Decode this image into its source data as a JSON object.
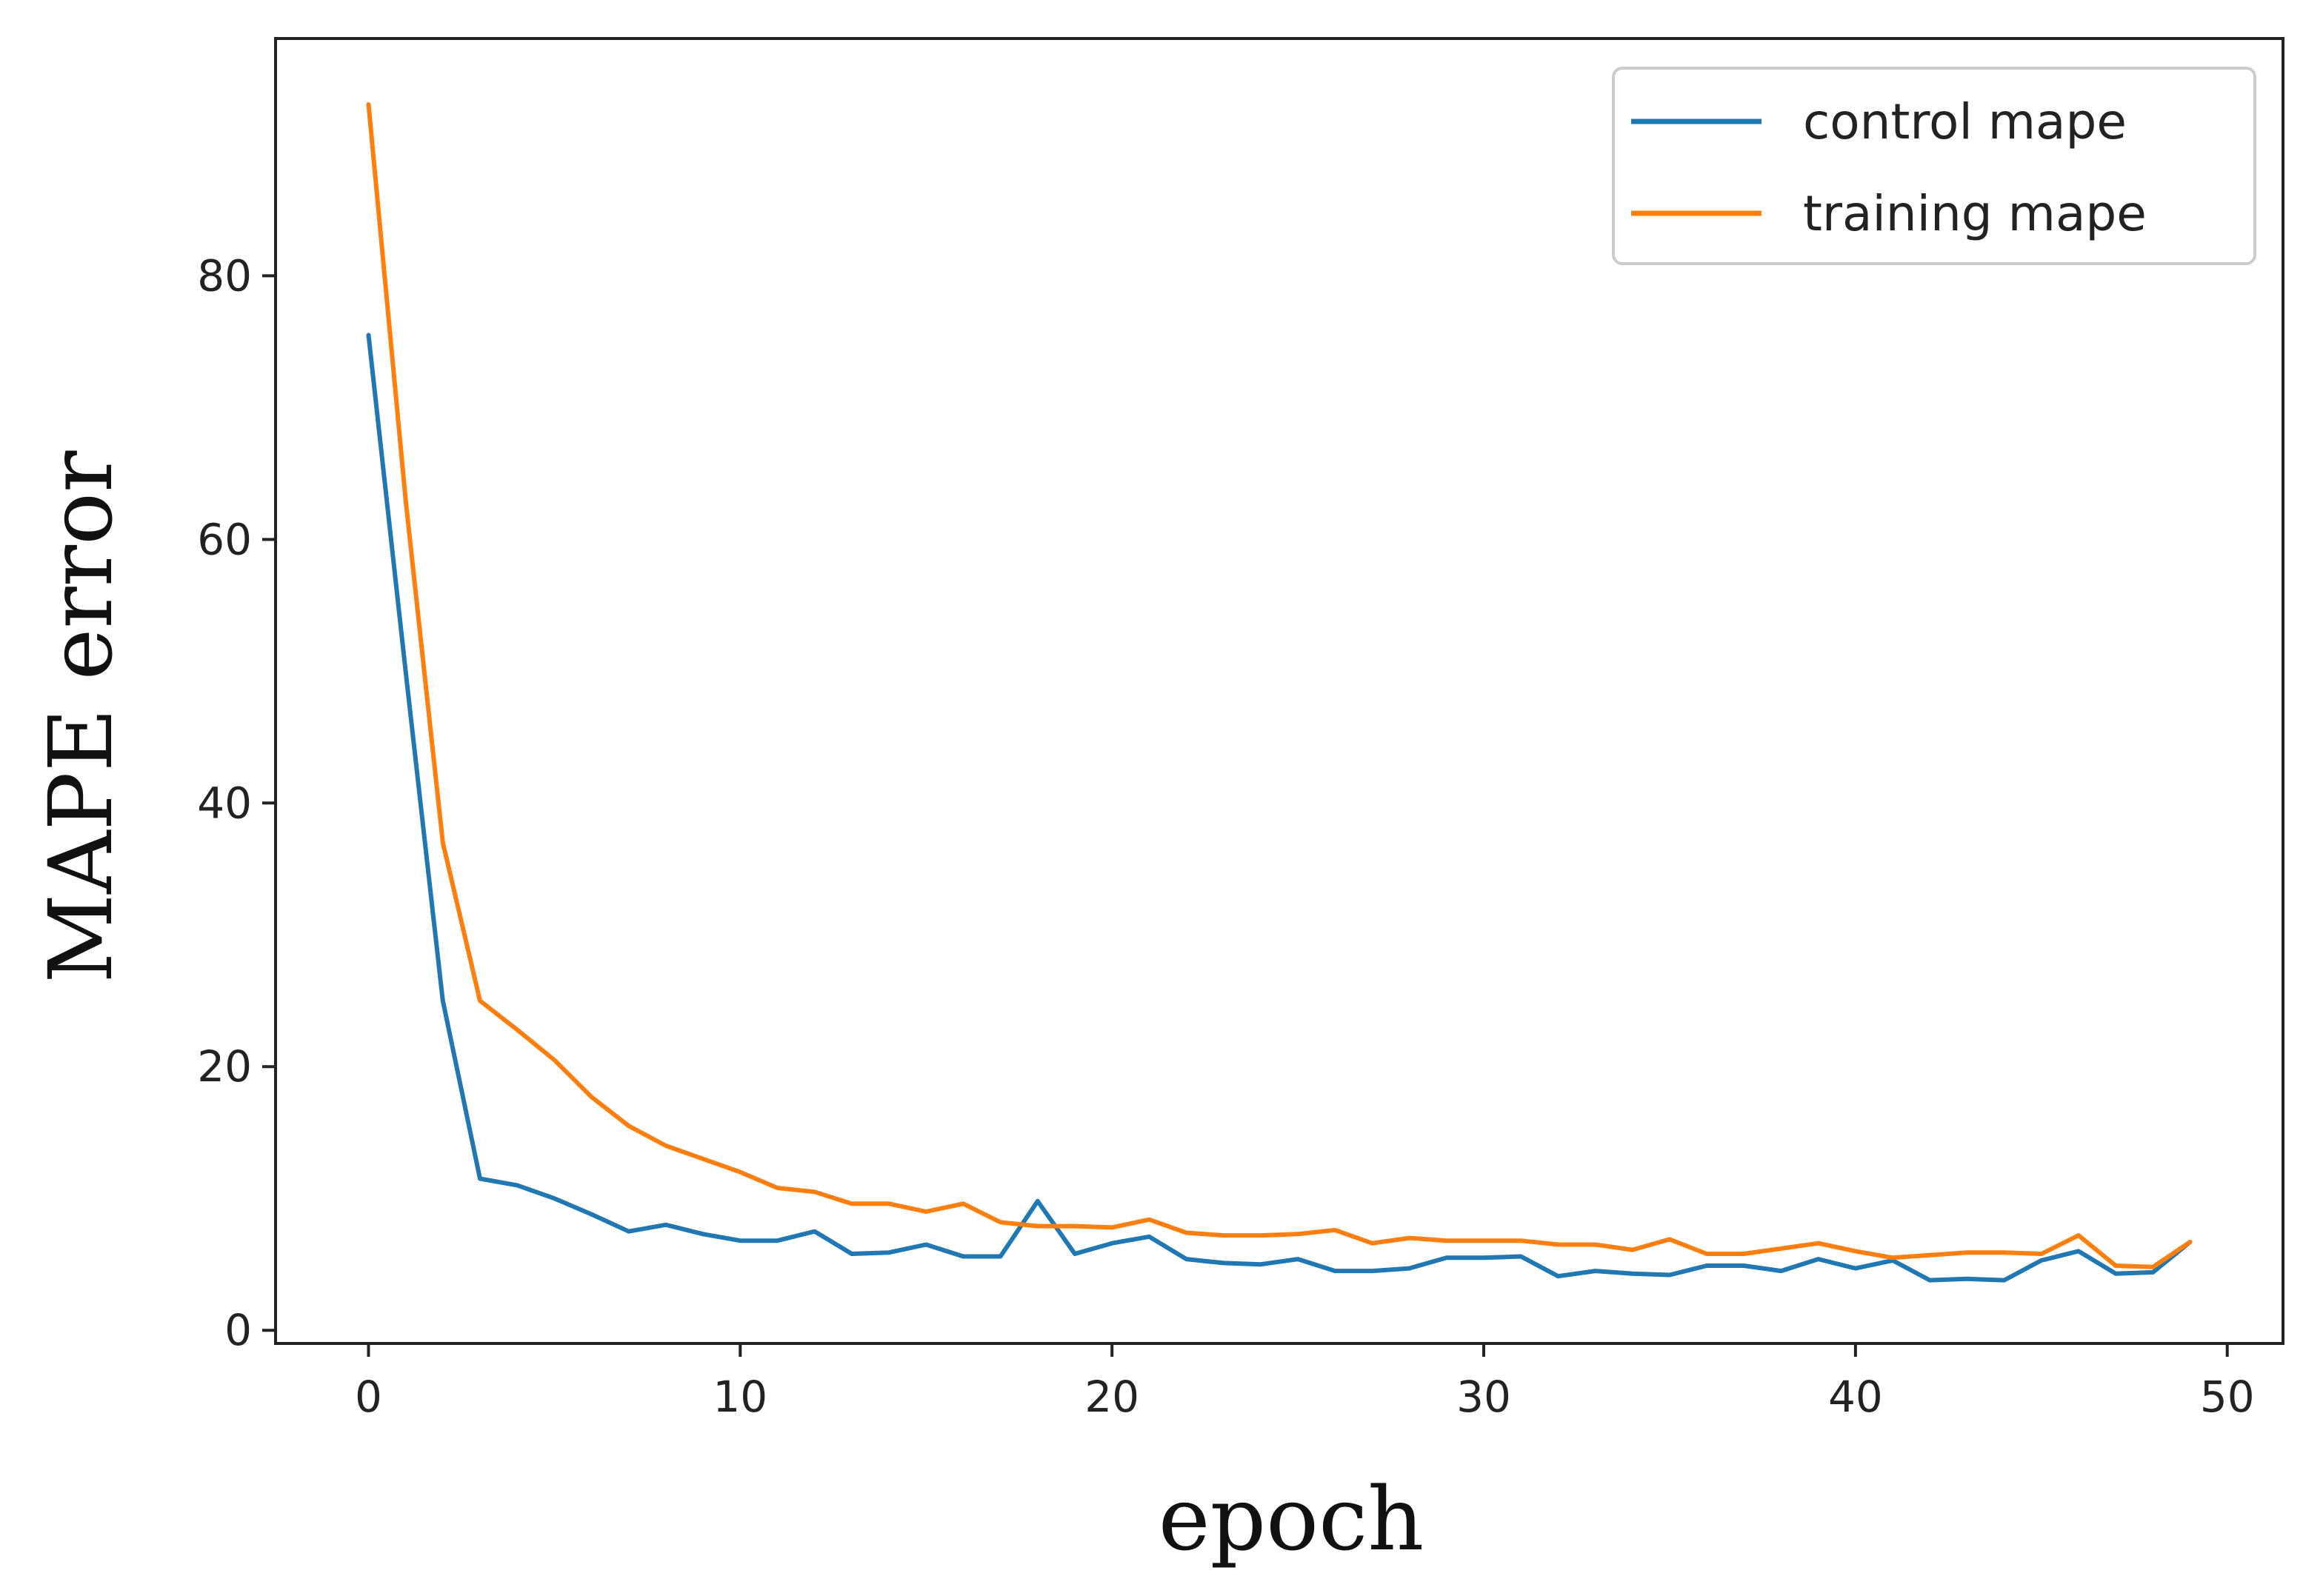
{
  "chart_data": {
    "type": "line",
    "title": "",
    "xlabel": "epoch",
    "ylabel": "MAPE error",
    "xlim": [
      -2.5,
      51.5
    ],
    "ylim": [
      -1,
      98
    ],
    "xticks": [
      0,
      10,
      20,
      30,
      40,
      50
    ],
    "yticks": [
      0,
      20,
      40,
      60,
      80
    ],
    "grid": false,
    "legend_position": "upper right",
    "x": [
      0,
      1,
      2,
      3,
      4,
      5,
      6,
      7,
      8,
      9,
      10,
      11,
      12,
      13,
      14,
      15,
      16,
      17,
      18,
      19,
      20,
      21,
      22,
      23,
      24,
      25,
      26,
      27,
      28,
      29,
      30,
      31,
      32,
      33,
      34,
      35,
      36,
      37,
      38,
      39,
      40,
      41,
      42,
      43,
      44,
      45,
      46,
      47,
      48,
      49
    ],
    "series": [
      {
        "name": "control mape",
        "color": "#1f77b4",
        "values": [
          75.5,
          50.0,
          25.0,
          11.5,
          11.0,
          10.0,
          8.8,
          7.5,
          8.0,
          7.3,
          6.8,
          6.8,
          7.5,
          5.8,
          5.9,
          6.5,
          5.6,
          5.6,
          9.8,
          5.8,
          6.6,
          7.1,
          5.4,
          5.1,
          5.0,
          5.4,
          4.5,
          4.5,
          4.7,
          5.5,
          5.5,
          5.6,
          4.1,
          4.5,
          4.3,
          4.2,
          4.9,
          4.9,
          4.5,
          5.4,
          4.7,
          5.3,
          3.8,
          3.9,
          3.8,
          5.3,
          6.0,
          4.3,
          4.4,
          6.7
        ]
      },
      {
        "name": "training mape",
        "color": "#ff7f0e",
        "values": [
          93.0,
          63.0,
          37.0,
          25.0,
          22.8,
          20.5,
          17.7,
          15.5,
          14.0,
          13.0,
          12.0,
          10.8,
          10.5,
          9.6,
          9.6,
          9.0,
          9.6,
          8.2,
          7.9,
          7.9,
          7.8,
          8.4,
          7.4,
          7.2,
          7.2,
          7.3,
          7.6,
          6.6,
          7.0,
          6.8,
          6.8,
          6.8,
          6.5,
          6.5,
          6.1,
          6.9,
          5.8,
          5.8,
          6.2,
          6.6,
          6.0,
          5.5,
          5.7,
          5.9,
          5.9,
          5.8,
          7.2,
          4.9,
          4.8,
          6.7
        ]
      }
    ]
  }
}
